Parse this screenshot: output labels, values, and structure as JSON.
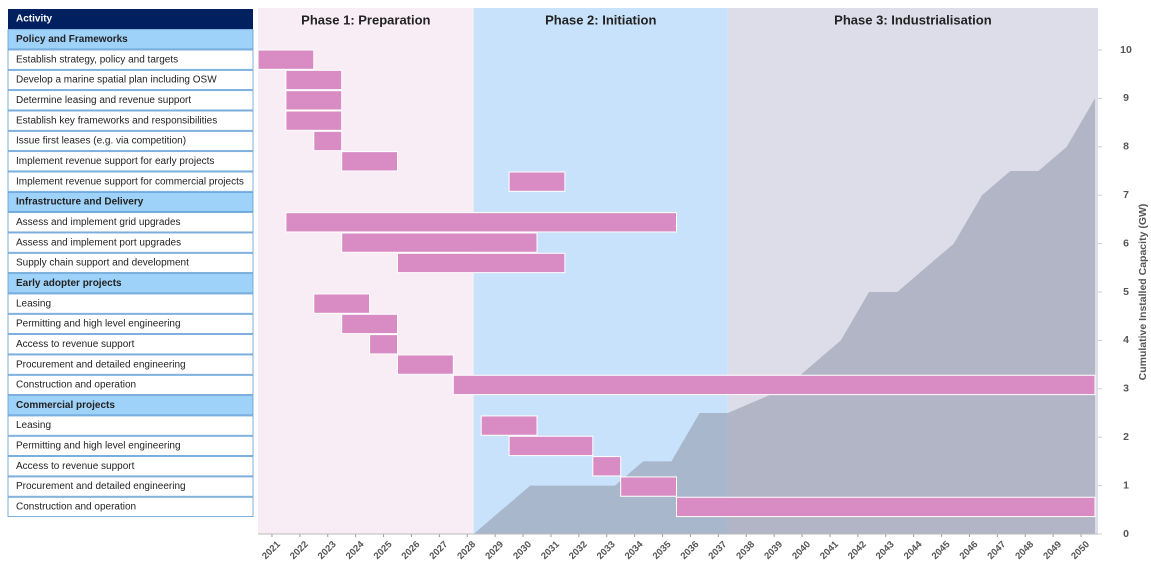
{
  "chart_data": {
    "type": "gantt",
    "activity_header": "Activity",
    "phases": [
      {
        "name": "Phase 1: Preparation",
        "start": 2021,
        "end": 2028,
        "color": "#f8ecf5"
      },
      {
        "name": "Phase 2: Initiation",
        "start": 2028,
        "end": 2037,
        "color": "#c8e2fb"
      },
      {
        "name": "Phase 3: Industrialisation",
        "start": 2037,
        "end": 2050,
        "color": "#dcdde8"
      }
    ],
    "sections": [
      {
        "name": "Policy and Frameworks",
        "tasks": [
          {
            "name": "Establish strategy, policy and targets",
            "start": 2021,
            "end": 2022
          },
          {
            "name": "Develop a marine spatial plan including OSW",
            "start": 2022,
            "end": 2023
          },
          {
            "name": "Determine leasing and revenue support",
            "start": 2022,
            "end": 2023
          },
          {
            "name": "Establish key frameworks and responsibilities",
            "start": 2022,
            "end": 2023
          },
          {
            "name": "Issue first leases (e.g. via competition)",
            "start": 2023,
            "end": 2023
          },
          {
            "name": "Implement revenue support for early projects",
            "start": 2024,
            "end": 2025
          },
          {
            "name": "Implement revenue support for commercial projects",
            "start": 2030,
            "end": 2031
          }
        ]
      },
      {
        "name": "Infrastructure and Delivery",
        "tasks": [
          {
            "name": "Assess and implement grid upgrades",
            "start": 2022,
            "end": 2035
          },
          {
            "name": "Assess and implement port upgrades",
            "start": 2024,
            "end": 2030
          },
          {
            "name": "Supply chain support and development",
            "start": 2026,
            "end": 2031
          }
        ]
      },
      {
        "name": "Early adopter projects",
        "tasks": [
          {
            "name": "Leasing",
            "start": 2023,
            "end": 2024
          },
          {
            "name": "Permitting and high level engineering",
            "start": 2024,
            "end": 2025
          },
          {
            "name": "Access to revenue support",
            "start": 2025,
            "end": 2025
          },
          {
            "name": "Procurement and detailed engineering",
            "start": 2026,
            "end": 2027
          },
          {
            "name": "Construction and operation",
            "start": 2028,
            "end": 2050
          }
        ]
      },
      {
        "name": "Commercial projects",
        "tasks": [
          {
            "name": "Leasing",
            "start": 2029,
            "end": 2030
          },
          {
            "name": "Permitting and high level engineering",
            "start": 2030,
            "end": 2032
          },
          {
            "name": "Access to revenue support",
            "start": 2033,
            "end": 2033
          },
          {
            "name": "Procurement and detailed engineering",
            "start": 2034,
            "end": 2035
          },
          {
            "name": "Construction and operation",
            "start": 2036,
            "end": 2050
          }
        ]
      }
    ],
    "bar_color": "#d98cc3",
    "xticks": [
      2021,
      2022,
      2023,
      2024,
      2025,
      2026,
      2027,
      2028,
      2029,
      2030,
      2031,
      2032,
      2033,
      2034,
      2035,
      2036,
      2037,
      2038,
      2039,
      2040,
      2041,
      2042,
      2043,
      2044,
      2045,
      2046,
      2047,
      2048,
      2049,
      2050
    ],
    "capacity": {
      "type": "area",
      "ylabel": "Cumulative Installed Capacity (GW)",
      "color": "#8f93a8",
      "x": [
        2028,
        2029,
        2030,
        2031,
        2032,
        2033,
        2034,
        2035,
        2036,
        2037,
        2038,
        2039,
        2040,
        2041,
        2042,
        2043,
        2044,
        2045,
        2046,
        2047,
        2048,
        2049,
        2050
      ],
      "values": [
        0,
        0.5,
        1,
        1,
        1,
        1,
        1.5,
        1.5,
        2.5,
        2.5,
        2.75,
        3,
        3.5,
        4,
        5,
        5,
        5.5,
        6,
        7,
        7.5,
        7.5,
        8,
        9
      ],
      "y2lim": [
        0,
        10
      ],
      "y2ticks": [
        0,
        1,
        2,
        3,
        4,
        5,
        6,
        7,
        8,
        9,
        10
      ]
    }
  }
}
